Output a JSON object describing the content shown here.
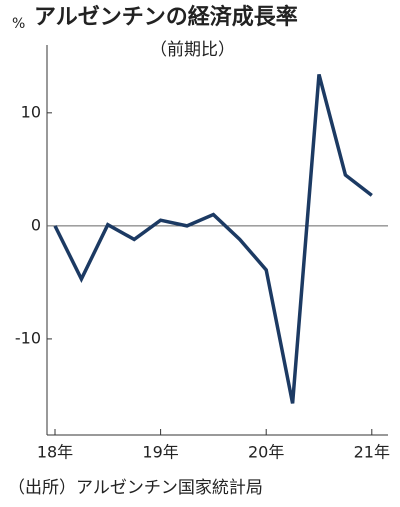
{
  "chart_data": {
    "type": "line",
    "title": "アルゼンチンの経済成長率",
    "subtitle": "（前期比）",
    "unit": "%",
    "source": "（出所）アルゼンチン国家統計局",
    "categories": [
      "18年",
      null,
      null,
      null,
      "19年",
      null,
      null,
      null,
      "20年",
      null,
      null,
      null,
      "21年"
    ],
    "series": [
      {
        "color": "#1c3a63",
        "values": [
          0,
          -4.7,
          0.1,
          -1.2,
          0.5,
          0,
          1.0,
          -1.2,
          -3.9,
          -15.7,
          13.4,
          4.5,
          2.7
        ]
      }
    ],
    "ylim": [
      -18.5,
      16
    ],
    "yticks": [
      -10,
      0,
      10
    ],
    "zero_line": true
  }
}
